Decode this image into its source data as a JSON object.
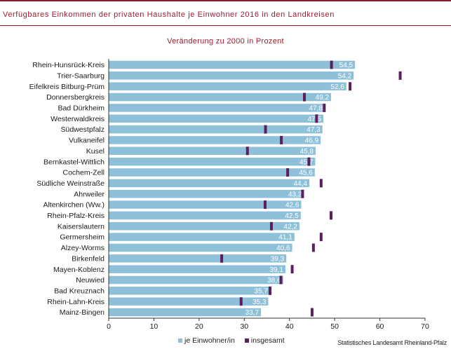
{
  "header": {
    "title": "Verfügbares Einkommen der privaten Haushalte je Einwohner 2016 in den Landkreisen",
    "subtitle": "Veränderung zu 2000 in Prozent"
  },
  "colors": {
    "accent": "#9b1c2e",
    "rule": "#8c1d2f",
    "bar": "#8ec1d9",
    "marker": "#5b1f5e",
    "bar_label": "#ffffff"
  },
  "legend": {
    "bar_label": "je Einwohner/in",
    "marker_label": "insgesamt"
  },
  "source": "Statistisches Landesamt Rheinland-Pfalz",
  "chart_data": {
    "type": "bar",
    "orientation": "horizontal",
    "title": "Verfügbares Einkommen der privaten Haushalte je Einwohner 2016 in den Landkreisen",
    "subtitle": "Veränderung zu 2000 in Prozent",
    "xlim": [
      0,
      70
    ],
    "xticks": [
      0,
      10,
      20,
      30,
      40,
      50,
      60,
      70
    ],
    "grid": false,
    "legend_position": "bottom",
    "categories": [
      "Rhein-Hunsrück-Kreis",
      "Trier-Saarburg",
      "Eifelkreis Bitburg-Prüm",
      "Donnersbergkreis",
      "Bad Dürkheim",
      "Westerwaldkreis",
      "Südwestpfalz",
      "Vulkaneifel",
      "Kusel",
      "Bernkastel-Wittlich",
      "Cochem-Zell",
      "Südliche Weinstraße",
      "Ahrweiler",
      "Altenkirchen (Ww.)",
      "Rhein-Pfalz-Kreis",
      "Kaiserslautern",
      "Germersheim",
      "Alzey-Worms",
      "Birkenfeld",
      "Mayen-Koblenz",
      "Neuwied",
      "Bad Kreuznach",
      "Rhein-Lahn-Kreis",
      "Mainz-Bingen"
    ],
    "series": [
      {
        "name": "je Einwohner/in",
        "kind": "bar",
        "values": [
          54.5,
          54.2,
          52.6,
          49.2,
          47.8,
          47.5,
          47.3,
          46.9,
          45.8,
          45.7,
          45.6,
          44.4,
          43.2,
          42.6,
          42.5,
          42.2,
          41.1,
          40.6,
          39.3,
          39.1,
          38.6,
          35.7,
          35.3,
          33.7
        ],
        "value_labels": [
          "54,5",
          "54,2",
          "52,6",
          "49,2",
          "47,8",
          "47,5",
          "47,3",
          "46,9",
          "45,8",
          "45,7",
          "45,6",
          "44,4",
          "43,2",
          "42,6",
          "42,5",
          "42,2",
          "41,1",
          "40,6",
          "39,3",
          "39,1",
          "38,6",
          "35,7",
          "35,3",
          "33,7"
        ]
      },
      {
        "name": "insgesamt",
        "kind": "marker",
        "values": [
          49.3,
          64.5,
          53.4,
          43.3,
          47.7,
          46.0,
          34.7,
          38.2,
          30.7,
          44.3,
          39.6,
          47.0,
          42.9,
          34.6,
          49.2,
          36.0,
          47.0,
          45.3,
          25.0,
          40.6,
          38.1,
          35.7,
          29.3,
          45.0
        ]
      }
    ]
  }
}
